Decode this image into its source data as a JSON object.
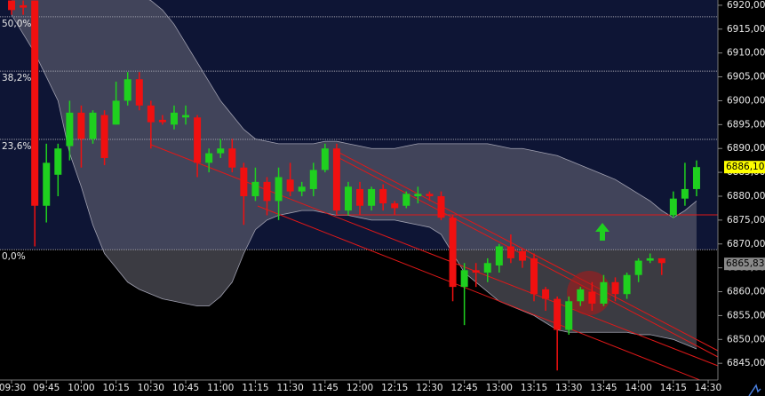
{
  "chart_data": {
    "type": "candlestick",
    "categories": [
      "09:30",
      null,
      null,
      "09:45",
      null,
      null,
      "10:00",
      null,
      null,
      "10:15",
      null,
      null,
      "10:30",
      null,
      null,
      "10:45",
      null,
      null,
      "11:00",
      null,
      null,
      "11:15",
      null,
      null,
      "11:30",
      null,
      null,
      "11:45",
      null,
      null,
      "12:00",
      null,
      null,
      "12:15",
      null,
      null,
      "12:30",
      null,
      null,
      "12:45",
      null,
      null,
      "13:00",
      null,
      null,
      "13:15",
      null,
      null,
      "13:30",
      null,
      null,
      "13:45",
      null,
      null,
      "14:00",
      null,
      null,
      "14:15",
      null,
      null,
      "14:30"
    ],
    "open": [
      6921,
      6920,
      6921,
      6878,
      6884.5,
      6890.5,
      6897.5,
      6892,
      6897,
      6895,
      6900,
      6904.5,
      6899,
      6896,
      6895,
      6896.5,
      6896.5,
      6887,
      6889,
      6890,
      6886,
      6880,
      6883,
      6879,
      6883.5,
      6881,
      6881.5,
      6885.5,
      6890,
      6877,
      6881.5,
      6878,
      6881.5,
      6878.5,
      6878,
      6880,
      6880.5,
      6880,
      6875.5,
      6861,
      6864.5,
      6864,
      6865.5,
      6869.5,
      6868.5,
      6867,
      6860.5,
      6858.5,
      6852,
      6858,
      6860,
      6857.5,
      6862,
      6859.5,
      6863.5,
      6866.5,
      6867,
      6876,
      6879.5,
      6881.5,
      null
    ],
    "high": [
      6921,
      6921,
      6921,
      6891,
      6891,
      6900,
      6899,
      6898,
      6898,
      6904,
      6906,
      6906,
      6900,
      6897,
      6899,
      6899,
      6897,
      6890,
      6892,
      6892,
      6887,
      6886,
      6884,
      6886,
      6887,
      6883,
      6887,
      6891,
      6891,
      6883,
      6883,
      6882,
      6882.5,
      6879,
      6881,
      6882,
      6881,
      6881,
      6876,
      6866,
      6866,
      6867,
      6870,
      6872,
      6869,
      6868,
      6861,
      6859,
      6859,
      6861,
      6862,
      6863.5,
      6863,
      6864,
      6867,
      6868,
      6867,
      6881,
      6887,
      6887.5,
      null
    ],
    "low": [
      6918,
      6918,
      6869.5,
      6874.5,
      6880,
      6887.5,
      6886,
      6891,
      6886.5,
      6895,
      6899,
      6898,
      6890,
      6895,
      6894,
      6895,
      6884,
      6885,
      6888,
      6885,
      6874,
      6879,
      6876,
      6875,
      6880,
      6880,
      6880,
      6885,
      6876,
      6876,
      6876,
      6877,
      6877,
      6876,
      6877.5,
      6878.5,
      6879,
      6875,
      6858,
      6853,
      6861,
      6862,
      6864,
      6866,
      6865,
      6858,
      6856,
      6843.5,
      6851,
      6857,
      6856,
      6857,
      6858,
      6858.5,
      6862,
      6866,
      6863.5,
      6875.5,
      6878,
      6880,
      null
    ],
    "close": [
      6919,
      6919.5,
      6878,
      6887,
      6890,
      6897.5,
      6892,
      6897.5,
      6888,
      6900,
      6904.5,
      6899,
      6895.5,
      6895.5,
      6897.5,
      6897,
      6887,
      6889,
      6890,
      6886,
      6880,
      6883,
      6879,
      6884,
      6881,
      6882,
      6885.5,
      6890,
      6877,
      6882,
      6878,
      6881.5,
      6878.5,
      6877.5,
      6880.5,
      6880.5,
      6880,
      6875.5,
      6861,
      6864.5,
      6864,
      6866,
      6869.5,
      6867,
      6866.5,
      6859.5,
      6858.5,
      6852,
      6858,
      6860.5,
      6857.5,
      6862,
      6859.5,
      6863.5,
      6866.5,
      6867,
      6866,
      6879.5,
      6881.5,
      6886.1,
      null
    ],
    "up_color": "#1fd01f",
    "down_color": "#f01010",
    "band_upper": [
      6922,
      6922,
      6922,
      6922,
      6922,
      6922,
      6922,
      6922,
      6922,
      6922,
      6922,
      6922,
      6921,
      6919,
      6916,
      6912,
      6908,
      6904,
      6900,
      6897,
      6894,
      6892,
      6891.5,
      6891,
      6891,
      6891,
      6891,
      6891.5,
      6891.5,
      6891,
      6890.5,
      6890,
      6890,
      6890,
      6890.5,
      6891,
      6891,
      6891,
      6891,
      6891,
      6891,
      6891,
      6890.5,
      6890,
      6890,
      6889.5,
      6889,
      6888.5,
      6887.5,
      6886.5,
      6885.5,
      6884.5,
      6883.5,
      6882,
      6880.5,
      6879,
      6877,
      6875.5,
      6877,
      6879,
      null
    ],
    "band_lower": [
      6918,
      6914,
      6910,
      6905,
      6900,
      6889,
      6882,
      6874,
      6868,
      6865,
      6862,
      6860.5,
      6859.5,
      6858.5,
      6858,
      6857.5,
      6857,
      6857,
      6859,
      6862,
      6868,
      6873,
      6875,
      6876,
      6876.5,
      6877,
      6877,
      6876.5,
      6876,
      6876,
      6875.5,
      6875,
      6875,
      6875,
      6874.5,
      6874,
      6873.5,
      6872,
      6868,
      6864,
      6862,
      6860,
      6858,
      6857,
      6856,
      6855,
      6853.5,
      6852,
      6851.5,
      6851.5,
      6851.5,
      6851.5,
      6851.5,
      6851.5,
      6851,
      6851,
      6850.5,
      6850,
      6849,
      6848,
      null
    ],
    "ylim": [
      6841.5,
      6921.1
    ],
    "yticks": [
      {
        "value": 6920,
        "label": "6920,00"
      },
      {
        "value": 6915,
        "label": "6915,00"
      },
      {
        "value": 6910,
        "label": "6910,00"
      },
      {
        "value": 6905,
        "label": "6905,00"
      },
      {
        "value": 6900,
        "label": "6900,00"
      },
      {
        "value": 6895,
        "label": "6895,00"
      },
      {
        "value": 6890,
        "label": "6890,00"
      },
      {
        "value": 6885,
        "label": "6885,00"
      },
      {
        "value": 6880,
        "label": "6880,00"
      },
      {
        "value": 6875,
        "label": "6875,00"
      },
      {
        "value": 6870,
        "label": "6870,00"
      },
      {
        "value": 6865,
        "label": "6865,00"
      },
      {
        "value": 6860,
        "label": "6860,00"
      },
      {
        "value": 6855,
        "label": "6855,00"
      },
      {
        "value": 6850,
        "label": "6850,00"
      },
      {
        "value": 6845,
        "label": "6845,00"
      }
    ],
    "fib_levels": [
      {
        "value": 6917.6,
        "label": "50,0%"
      },
      {
        "value": 6906.2,
        "label": "38,2%"
      },
      {
        "value": 6891.9,
        "label": "23,6%"
      },
      {
        "value": 6868.8,
        "label": "0,0%"
      }
    ],
    "price_markers": [
      {
        "value": 6886.1,
        "label": "6886,10",
        "color": "#ffff00"
      },
      {
        "value": 6865.83,
        "label": "6865,83",
        "color": "#8a8a8a"
      }
    ]
  }
}
